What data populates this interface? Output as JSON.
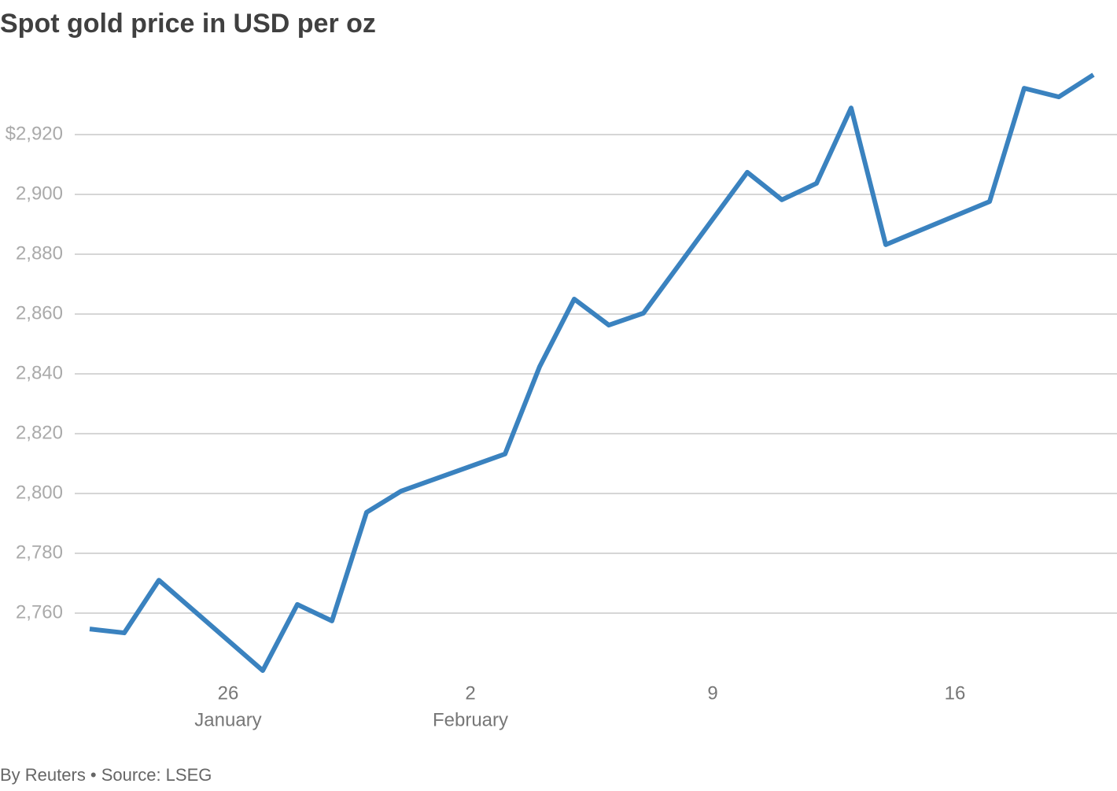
{
  "chart_data": {
    "type": "line",
    "title": "Spot gold price in USD per oz",
    "source": "By Reuters • Source: LSEG",
    "x": [
      "January 22",
      "January 23",
      "January 24",
      "January 27",
      "January 28",
      "January 29",
      "January 30",
      "January 31",
      "February 3",
      "February 4",
      "February 5",
      "February 6",
      "February 7",
      "February 10",
      "February 11",
      "February 12",
      "February 13",
      "February 14",
      "February 17",
      "February 18",
      "February 19",
      "February 20"
    ],
    "series": [
      {
        "name": "Spot gold",
        "color": "#3a82bf",
        "values": [
          2754.7,
          2753.4,
          2771.0,
          2740.8,
          2762.9,
          2757.4,
          2793.7,
          2800.8,
          2813.2,
          2842.4,
          2865.0,
          2856.3,
          2860.3,
          2907.4,
          2898.2,
          2903.7,
          2928.9,
          2883.2,
          2897.6,
          2935.5,
          2932.6,
          2940.0
        ]
      }
    ],
    "xlim": [
      "January 22",
      "February 20"
    ],
    "xticks": [
      {
        "value": "January 26",
        "label": "26",
        "sublabel": "January"
      },
      {
        "value": "February 2",
        "label": "2",
        "sublabel": "February"
      },
      {
        "value": "February 9",
        "label": "9"
      },
      {
        "value": "February 16",
        "label": "16"
      }
    ],
    "ylim": [
      2738,
      2950
    ],
    "yticks": [
      {
        "value": 2760,
        "label": "2,760"
      },
      {
        "value": 2780,
        "label": "2,780"
      },
      {
        "value": 2800,
        "label": "2,800"
      },
      {
        "value": 2820,
        "label": "2,820"
      },
      {
        "value": 2840,
        "label": "2,840"
      },
      {
        "value": 2860,
        "label": "2,860"
      },
      {
        "value": 2880,
        "label": "2,880"
      },
      {
        "value": 2900,
        "label": "2,900"
      },
      {
        "value": 2920,
        "label": "$2,920"
      }
    ],
    "grid": true
  }
}
